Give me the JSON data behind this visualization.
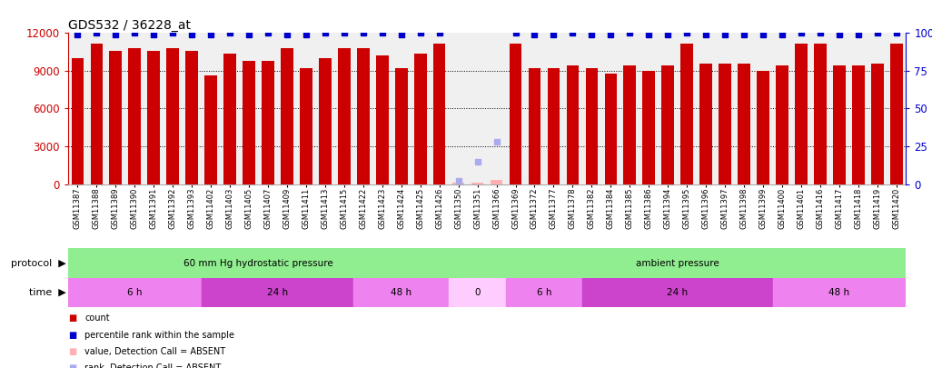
{
  "title": "GDS532 / 36228_at",
  "samples": [
    "GSM11387",
    "GSM11388",
    "GSM11389",
    "GSM11390",
    "GSM11391",
    "GSM11392",
    "GSM11393",
    "GSM11402",
    "GSM11403",
    "GSM11405",
    "GSM11407",
    "GSM11409",
    "GSM11411",
    "GSM11413",
    "GSM11415",
    "GSM11422",
    "GSM11423",
    "GSM11424",
    "GSM11425",
    "GSM11426",
    "GSM11350",
    "GSM11351",
    "GSM11366",
    "GSM11369",
    "GSM11372",
    "GSM11377",
    "GSM11378",
    "GSM11382",
    "GSM11384",
    "GSM11385",
    "GSM11386",
    "GSM11394",
    "GSM11395",
    "GSM11396",
    "GSM11397",
    "GSM11398",
    "GSM11399",
    "GSM11400",
    "GSM11401",
    "GSM11416",
    "GSM11417",
    "GSM11418",
    "GSM11419",
    "GSM11420"
  ],
  "counts": [
    10000,
    11200,
    10600,
    10800,
    10600,
    10800,
    10600,
    8600,
    10400,
    9800,
    9800,
    10800,
    9200,
    10000,
    10800,
    10800,
    10200,
    9200,
    10400,
    11200,
    100,
    100,
    300,
    11200,
    9200,
    9200,
    9400,
    9200,
    8800,
    9400,
    9000,
    9400,
    11200,
    9600,
    9600,
    9600,
    9000,
    9400,
    11200,
    11200,
    9400,
    9400,
    9600,
    11200
  ],
  "percentile_ranks": [
    99,
    100,
    99,
    100,
    99,
    100,
    99,
    99,
    100,
    99,
    100,
    99,
    99,
    100,
    100,
    100,
    100,
    99,
    100,
    100,
    2,
    15,
    28,
    100,
    99,
    99,
    100,
    99,
    99,
    100,
    99,
    99,
    100,
    99,
    99,
    99,
    99,
    99,
    100,
    100,
    99,
    99,
    100,
    100
  ],
  "absent_count": [
    false,
    false,
    false,
    false,
    false,
    false,
    false,
    false,
    false,
    false,
    false,
    false,
    false,
    false,
    false,
    false,
    false,
    false,
    false,
    false,
    true,
    true,
    true,
    false,
    false,
    false,
    false,
    false,
    false,
    false,
    false,
    false,
    false,
    false,
    false,
    false,
    false,
    false,
    false,
    false,
    false,
    false,
    false,
    false
  ],
  "absent_rank": [
    false,
    false,
    false,
    false,
    false,
    false,
    false,
    false,
    false,
    false,
    false,
    false,
    false,
    false,
    false,
    false,
    false,
    false,
    false,
    false,
    true,
    true,
    true,
    false,
    false,
    false,
    false,
    false,
    false,
    false,
    false,
    false,
    false,
    false,
    false,
    false,
    false,
    false,
    false,
    false,
    false,
    false,
    false,
    false
  ],
  "protocol_groups": [
    {
      "label": "60 mm Hg hydrostatic pressure",
      "start": 0,
      "end": 19,
      "color": "#90ee90"
    },
    {
      "label": "ambient pressure",
      "start": 20,
      "end": 43,
      "color": "#90ee90"
    }
  ],
  "time_groups": [
    {
      "label": "6 h",
      "start": 0,
      "end": 6,
      "color": "#ee82ee"
    },
    {
      "label": "24 h",
      "start": 7,
      "end": 14,
      "color": "#cc44cc"
    },
    {
      "label": "48 h",
      "start": 15,
      "end": 19,
      "color": "#ee82ee"
    },
    {
      "label": "0",
      "start": 20,
      "end": 22,
      "color": "#ffccff"
    },
    {
      "label": "6 h",
      "start": 23,
      "end": 26,
      "color": "#ee82ee"
    },
    {
      "label": "24 h",
      "start": 27,
      "end": 36,
      "color": "#cc44cc"
    },
    {
      "label": "48 h",
      "start": 37,
      "end": 43,
      "color": "#ee82ee"
    }
  ],
  "bar_color": "#cc0000",
  "absent_bar_color": "#ffb0b0",
  "rank_marker_color": "#0000cc",
  "absent_rank_color": "#aaaaee",
  "bg_color": "#ffffff",
  "plot_bg_color": "#f0f0f0",
  "left_axis_color": "#cc0000",
  "right_axis_color": "#0000cc",
  "yticks_left": [
    0,
    3000,
    6000,
    9000,
    12000
  ],
  "yticks_right": [
    0,
    25,
    50,
    75,
    100
  ],
  "legend_items": [
    {
      "color": "#cc0000",
      "label": "count"
    },
    {
      "color": "#0000cc",
      "label": "percentile rank within the sample"
    },
    {
      "color": "#ffb0b0",
      "label": "value, Detection Call = ABSENT"
    },
    {
      "color": "#aaaaee",
      "label": "rank, Detection Call = ABSENT"
    }
  ]
}
